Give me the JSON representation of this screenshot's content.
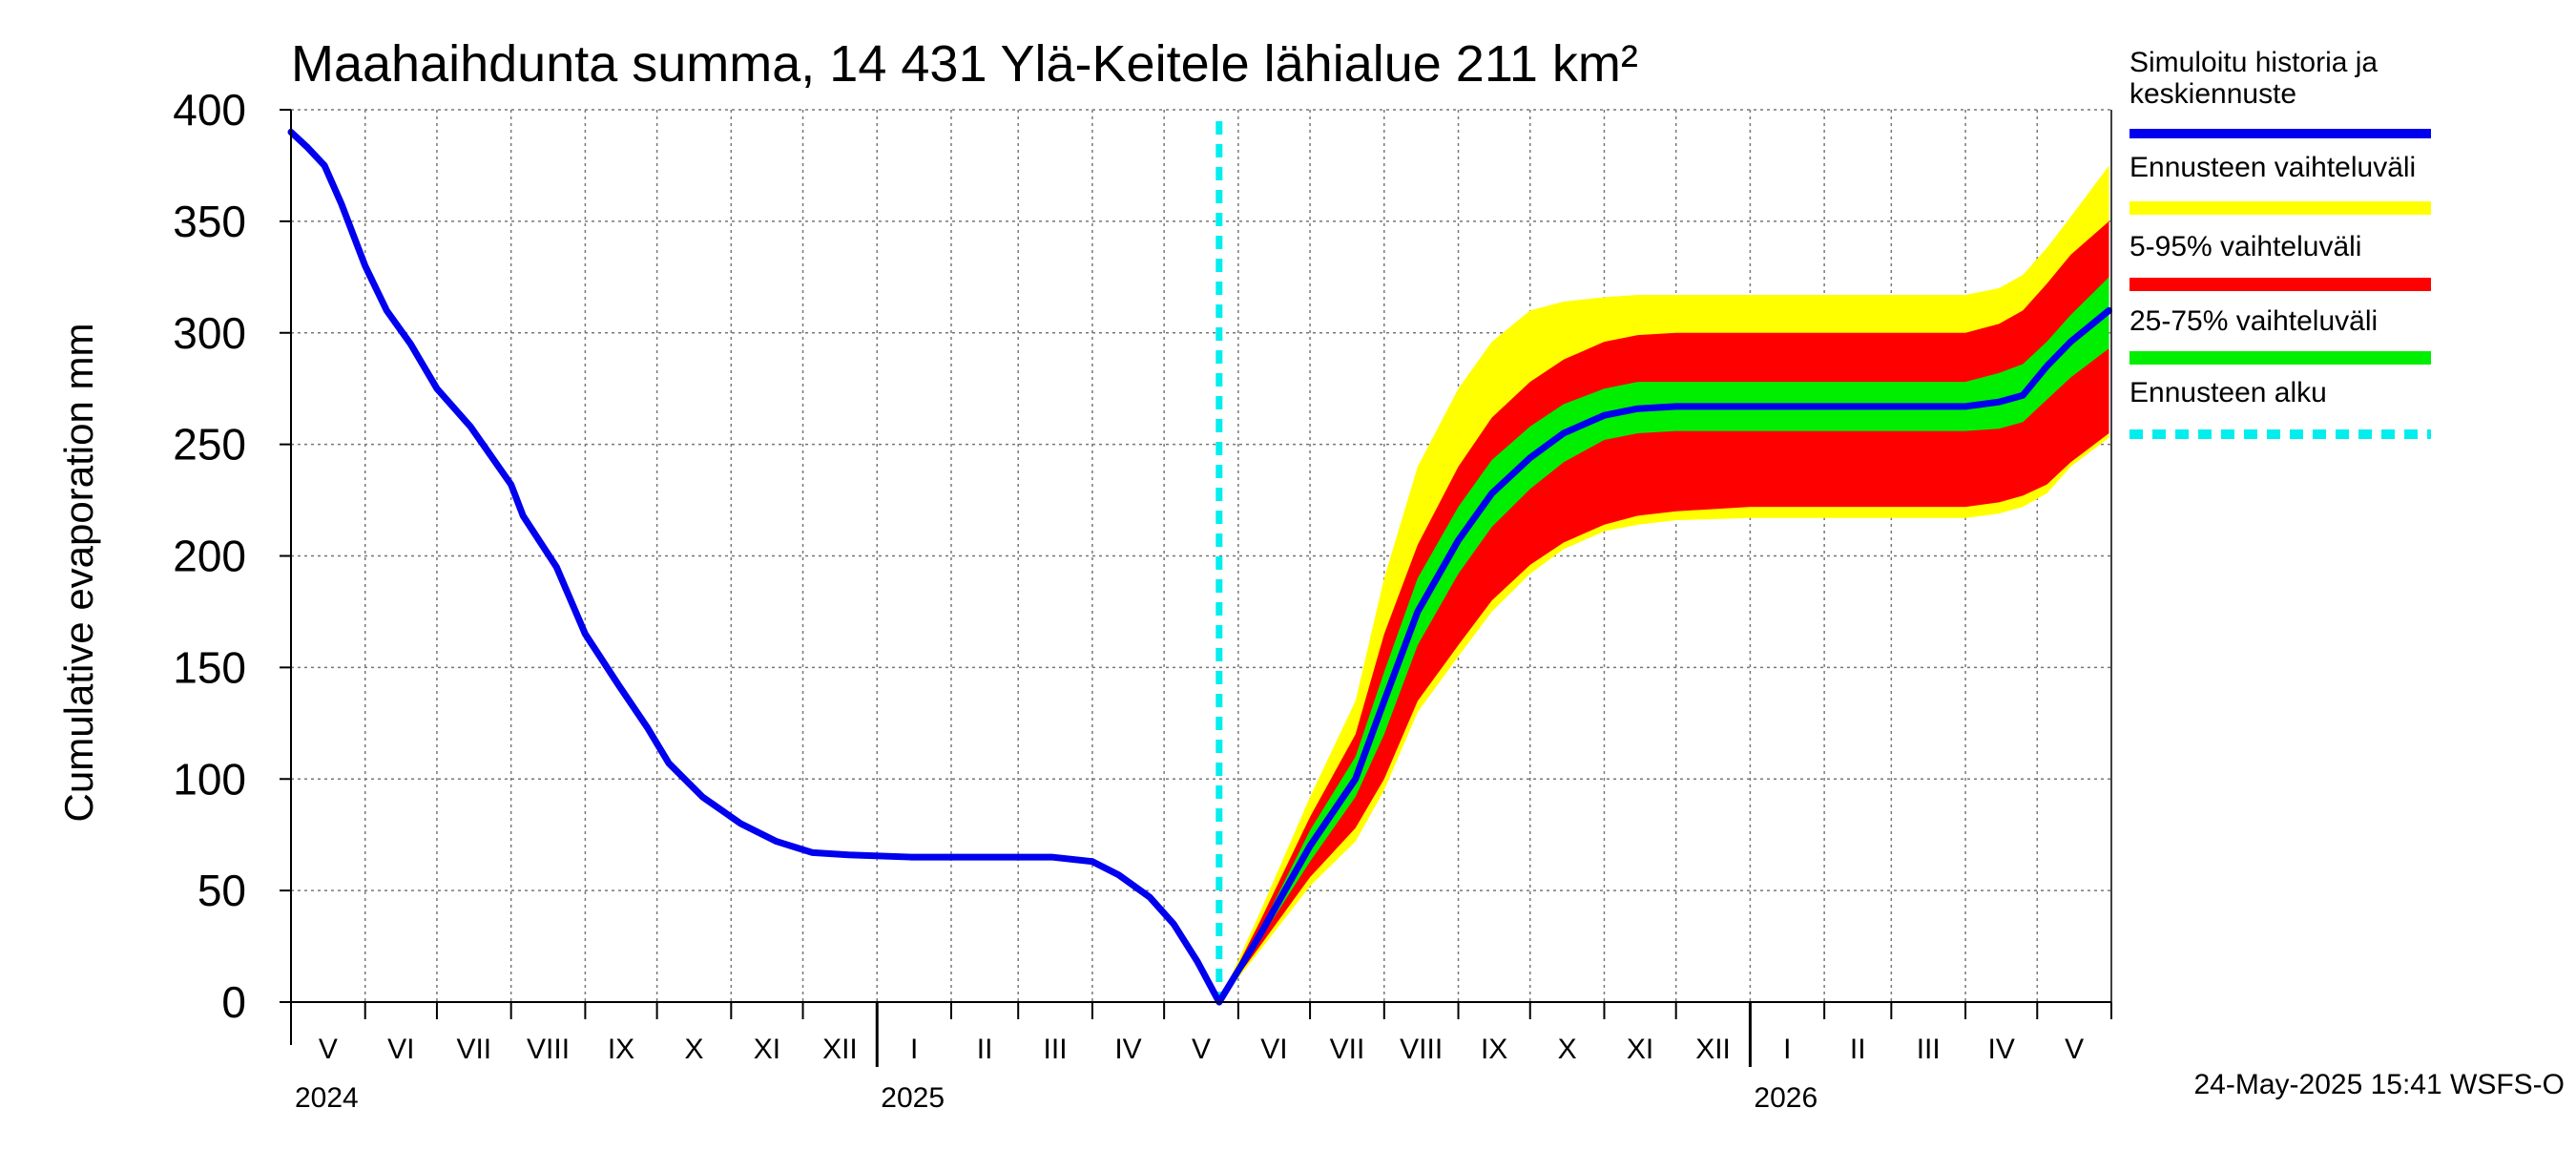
{
  "chart_data": {
    "type": "area",
    "title": "Maahaihdunta summa, 14 431 Ylä-Keitele lähialue 211 km²",
    "ylabel": "Cumulative evaporation   mm",
    "ylim": [
      0,
      400
    ],
    "yticks": [
      "0",
      "50",
      "100",
      "150",
      "200",
      "250",
      "300",
      "350",
      "400"
    ],
    "grid": true,
    "legend_position": "right",
    "x_months": [
      "V",
      "VI",
      "VII",
      "VIII",
      "IX",
      "X",
      "XI",
      "XII",
      "I",
      "II",
      "III",
      "IV",
      "V",
      "VI",
      "VII",
      "VIII",
      "IX",
      "X",
      "XI",
      "XII",
      "I",
      "II",
      "III",
      "IV",
      "V"
    ],
    "x_years": [
      "2024",
      "2025",
      "2026"
    ],
    "forecast_start": "2025-05-24",
    "legend": [
      {
        "label": "Simuloitu historia ja keskiennuste",
        "color": "#0000ee",
        "style": "solid"
      },
      {
        "label": "Ennusteen vaihteluväli",
        "color": "#ffff00",
        "style": "solid"
      },
      {
        "label": "5-95% vaihteluväli",
        "color": "#ff0000",
        "style": "solid"
      },
      {
        "label": "25-75% vaihteluväli",
        "color": "#00ee00",
        "style": "solid"
      },
      {
        "label": "Ennusteen alku",
        "color": "#00eeee",
        "style": "dashed"
      }
    ],
    "history": [
      [
        "2024-05-01",
        390
      ],
      [
        "2024-05-08",
        383
      ],
      [
        "2024-05-15",
        375
      ],
      [
        "2024-05-22",
        358
      ],
      [
        "2024-06-01",
        330
      ],
      [
        "2024-06-10",
        310
      ],
      [
        "2024-06-20",
        295
      ],
      [
        "2024-07-01",
        275
      ],
      [
        "2024-07-15",
        258
      ],
      [
        "2024-08-01",
        232
      ],
      [
        "2024-08-06",
        218
      ],
      [
        "2024-08-20",
        195
      ],
      [
        "2024-09-01",
        165
      ],
      [
        "2024-09-15",
        142
      ],
      [
        "2024-09-27",
        123
      ],
      [
        "2024-10-06",
        107
      ],
      [
        "2024-10-20",
        92
      ],
      [
        "2024-11-05",
        80
      ],
      [
        "2024-11-20",
        72
      ],
      [
        "2024-12-05",
        67
      ],
      [
        "2024-12-20",
        66
      ],
      [
        "2025-01-15",
        65
      ],
      [
        "2025-02-15",
        65
      ],
      [
        "2025-03-15",
        65
      ],
      [
        "2025-04-01",
        63
      ],
      [
        "2025-04-12",
        57
      ],
      [
        "2025-04-25",
        47
      ],
      [
        "2025-05-05",
        35
      ],
      [
        "2025-05-15",
        18
      ],
      [
        "2025-05-24",
        0
      ]
    ],
    "forecast_median": [
      [
        "2025-05-24",
        0
      ],
      [
        "2025-06-10",
        30
      ],
      [
        "2025-07-01",
        70
      ],
      [
        "2025-07-20",
        100
      ],
      [
        "2025-08-01",
        135
      ],
      [
        "2025-08-15",
        175
      ],
      [
        "2025-09-01",
        207
      ],
      [
        "2025-09-15",
        228
      ],
      [
        "2025-10-01",
        244
      ],
      [
        "2025-10-15",
        255
      ],
      [
        "2025-11-01",
        263
      ],
      [
        "2025-11-15",
        266
      ],
      [
        "2025-12-01",
        267
      ],
      [
        "2026-01-01",
        267
      ],
      [
        "2026-02-01",
        267
      ],
      [
        "2026-03-01",
        267
      ],
      [
        "2026-04-01",
        267
      ],
      [
        "2026-04-15",
        269
      ],
      [
        "2026-04-25",
        272
      ],
      [
        "2026-05-05",
        285
      ],
      [
        "2026-05-15",
        296
      ],
      [
        "2026-05-31",
        310
      ]
    ],
    "band_25_75": {
      "lower": [
        [
          "2025-05-24",
          0
        ],
        [
          "2025-06-10",
          28
        ],
        [
          "2025-07-01",
          63
        ],
        [
          "2025-07-20",
          92
        ],
        [
          "2025-08-01",
          120
        ],
        [
          "2025-08-15",
          160
        ],
        [
          "2025-09-01",
          192
        ],
        [
          "2025-09-15",
          213
        ],
        [
          "2025-10-01",
          230
        ],
        [
          "2025-10-15",
          242
        ],
        [
          "2025-11-01",
          252
        ],
        [
          "2025-11-15",
          255
        ],
        [
          "2025-12-01",
          256
        ],
        [
          "2026-01-01",
          256
        ],
        [
          "2026-02-01",
          256
        ],
        [
          "2026-03-01",
          256
        ],
        [
          "2026-04-01",
          256
        ],
        [
          "2026-04-15",
          257
        ],
        [
          "2026-04-25",
          260
        ],
        [
          "2026-05-05",
          270
        ],
        [
          "2026-05-15",
          280
        ],
        [
          "2026-05-31",
          293
        ]
      ],
      "upper": [
        [
          "2025-05-24",
          0
        ],
        [
          "2025-06-10",
          32
        ],
        [
          "2025-07-01",
          77
        ],
        [
          "2025-07-20",
          110
        ],
        [
          "2025-08-01",
          148
        ],
        [
          "2025-08-15",
          190
        ],
        [
          "2025-09-01",
          222
        ],
        [
          "2025-09-15",
          243
        ],
        [
          "2025-10-01",
          258
        ],
        [
          "2025-10-15",
          268
        ],
        [
          "2025-11-01",
          275
        ],
        [
          "2025-11-15",
          278
        ],
        [
          "2025-12-01",
          278
        ],
        [
          "2026-01-01",
          278
        ],
        [
          "2026-02-01",
          278
        ],
        [
          "2026-03-01",
          278
        ],
        [
          "2026-04-01",
          278
        ],
        [
          "2026-04-15",
          282
        ],
        [
          "2026-04-25",
          286
        ],
        [
          "2026-05-05",
          296
        ],
        [
          "2026-05-15",
          308
        ],
        [
          "2026-05-31",
          325
        ]
      ]
    },
    "band_5_95": {
      "lower": [
        [
          "2025-05-24",
          0
        ],
        [
          "2025-06-10",
          25
        ],
        [
          "2025-07-01",
          56
        ],
        [
          "2025-07-20",
          78
        ],
        [
          "2025-08-01",
          100
        ],
        [
          "2025-08-15",
          135
        ],
        [
          "2025-09-01",
          160
        ],
        [
          "2025-09-15",
          180
        ],
        [
          "2025-10-01",
          196
        ],
        [
          "2025-10-15",
          206
        ],
        [
          "2025-11-01",
          214
        ],
        [
          "2025-11-15",
          218
        ],
        [
          "2025-12-01",
          220
        ],
        [
          "2026-01-01",
          222
        ],
        [
          "2026-02-01",
          222
        ],
        [
          "2026-03-01",
          222
        ],
        [
          "2026-04-01",
          222
        ],
        [
          "2026-04-15",
          224
        ],
        [
          "2026-04-25",
          227
        ],
        [
          "2026-05-05",
          232
        ],
        [
          "2026-05-15",
          242
        ],
        [
          "2026-05-31",
          255
        ]
      ],
      "upper": [
        [
          "2025-05-24",
          0
        ],
        [
          "2025-06-10",
          36
        ],
        [
          "2025-07-01",
          83
        ],
        [
          "2025-07-20",
          120
        ],
        [
          "2025-08-01",
          165
        ],
        [
          "2025-08-15",
          205
        ],
        [
          "2025-09-01",
          240
        ],
        [
          "2025-09-15",
          262
        ],
        [
          "2025-10-01",
          278
        ],
        [
          "2025-10-15",
          288
        ],
        [
          "2025-11-01",
          296
        ],
        [
          "2025-11-15",
          299
        ],
        [
          "2025-12-01",
          300
        ],
        [
          "2026-01-01",
          300
        ],
        [
          "2026-02-01",
          300
        ],
        [
          "2026-03-01",
          300
        ],
        [
          "2026-04-01",
          300
        ],
        [
          "2026-04-15",
          304
        ],
        [
          "2026-04-25",
          310
        ],
        [
          "2026-05-05",
          322
        ],
        [
          "2026-05-15",
          335
        ],
        [
          "2026-05-31",
          350
        ]
      ]
    },
    "band_range": {
      "lower": [
        [
          "2025-05-24",
          0
        ],
        [
          "2025-06-10",
          23
        ],
        [
          "2025-07-01",
          52
        ],
        [
          "2025-07-20",
          72
        ],
        [
          "2025-08-01",
          95
        ],
        [
          "2025-08-15",
          130
        ],
        [
          "2025-09-01",
          155
        ],
        [
          "2025-09-15",
          175
        ],
        [
          "2025-10-01",
          192
        ],
        [
          "2025-10-15",
          203
        ],
        [
          "2025-11-01",
          211
        ],
        [
          "2025-11-15",
          214
        ],
        [
          "2025-12-01",
          216
        ],
        [
          "2026-01-01",
          217
        ],
        [
          "2026-02-01",
          217
        ],
        [
          "2026-03-01",
          217
        ],
        [
          "2026-04-01",
          217
        ],
        [
          "2026-04-15",
          219
        ],
        [
          "2026-04-25",
          222
        ],
        [
          "2026-05-05",
          228
        ],
        [
          "2026-05-15",
          240
        ],
        [
          "2026-05-31",
          253
        ]
      ],
      "upper": [
        [
          "2025-05-24",
          0
        ],
        [
          "2025-06-10",
          40
        ],
        [
          "2025-07-01",
          92
        ],
        [
          "2025-07-20",
          135
        ],
        [
          "2025-08-01",
          190
        ],
        [
          "2025-08-15",
          240
        ],
        [
          "2025-09-01",
          275
        ],
        [
          "2025-09-15",
          296
        ],
        [
          "2025-10-01",
          310
        ],
        [
          "2025-10-15",
          314
        ],
        [
          "2025-11-01",
          316
        ],
        [
          "2025-11-15",
          317
        ],
        [
          "2025-12-01",
          317
        ],
        [
          "2026-01-01",
          317
        ],
        [
          "2026-02-01",
          317
        ],
        [
          "2026-03-01",
          317
        ],
        [
          "2026-04-01",
          317
        ],
        [
          "2026-04-15",
          320
        ],
        [
          "2026-04-25",
          326
        ],
        [
          "2026-05-05",
          338
        ],
        [
          "2026-05-15",
          352
        ],
        [
          "2026-05-31",
          375
        ]
      ]
    }
  },
  "timestamp": "24-May-2025 15:41 WSFS-O"
}
